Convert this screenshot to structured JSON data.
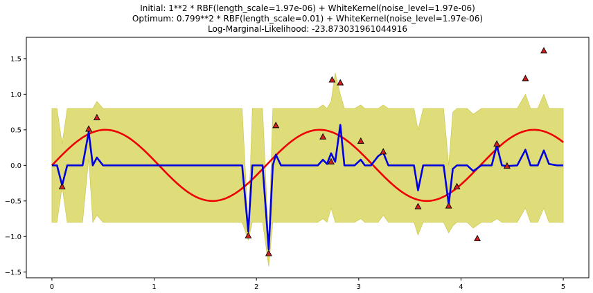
{
  "chart_data": {
    "type": "line",
    "title_lines": [
      "Initial: 1**2 * RBF(length_scale=1.97e-06) + WhiteKernel(noise_level=1.97e-06)",
      "Optimum: 0.799**2 * RBF(length_scale=0.01) + WhiteKernel(noise_level=1.97e-06)",
      "Log-Marginal-Likelihood: -23.873031961044916"
    ],
    "xlim": [
      -0.25,
      5.25
    ],
    "ylim": [
      -1.58,
      1.8
    ],
    "xticks": [
      0,
      1,
      2,
      3,
      4,
      5
    ],
    "xtick_labels": [
      "0",
      "1",
      "2",
      "3",
      "4",
      "5"
    ],
    "yticks": [
      -1.5,
      -1.0,
      -0.5,
      0.0,
      0.5,
      1.0,
      1.5
    ],
    "ytick_labels": [
      "−1.5",
      "−1.0",
      "−0.5",
      "0.0",
      "0.5",
      "1.0",
      "1.5"
    ],
    "grid": false,
    "colors": {
      "band": "#d4d04e",
      "band_edge": "#c8c43e",
      "mean": "#0000dd",
      "truth": "#ee0000",
      "marker_fill": "#d42020",
      "marker_edge": "#000000"
    },
    "true_function": {
      "expression": "0.5*sin(3x)",
      "x_range": [
        0,
        5
      ]
    },
    "observations": {
      "x": [
        0.1,
        0.36,
        0.44,
        1.92,
        2.12,
        2.19,
        2.65,
        2.73,
        2.74,
        2.82,
        3.02,
        3.24,
        3.58,
        3.88,
        3.96,
        4.16,
        4.35,
        4.45,
        4.63,
        4.81
      ],
      "y": [
        -0.3,
        0.51,
        0.67,
        -0.99,
        -1.24,
        0.56,
        0.4,
        0.05,
        1.2,
        1.16,
        0.34,
        0.19,
        -0.58,
        -0.57,
        -0.3,
        -1.03,
        0.3,
        -0.01,
        1.22,
        1.61
      ]
    },
    "mean": {
      "x": [
        0.0,
        0.05,
        0.1,
        0.15,
        0.3,
        0.36,
        0.4,
        0.44,
        0.5,
        1.86,
        1.92,
        1.96,
        2.06,
        2.12,
        2.16,
        2.19,
        2.24,
        2.6,
        2.65,
        2.69,
        2.73,
        2.77,
        2.82,
        2.86,
        2.96,
        3.02,
        3.06,
        3.12,
        3.19,
        3.24,
        3.29,
        3.54,
        3.58,
        3.63,
        3.83,
        3.88,
        3.92,
        3.96,
        4.02,
        4.06,
        4.12,
        4.2,
        4.3,
        4.35,
        4.4,
        4.45,
        4.55,
        4.63,
        4.68,
        4.75,
        4.81,
        4.86,
        4.94,
        5.0
      ],
      "y": [
        0.0,
        0.0,
        -0.28,
        0.0,
        0.0,
        0.47,
        0.0,
        0.11,
        0.0,
        0.0,
        -0.93,
        0.0,
        0.0,
        -1.18,
        0.0,
        0.15,
        0.0,
        0.0,
        0.08,
        0.02,
        0.17,
        0.05,
        0.57,
        0.0,
        0.0,
        0.08,
        0.0,
        0.0,
        0.13,
        0.18,
        0.0,
        0.0,
        -0.35,
        0.0,
        0.0,
        -0.55,
        -0.05,
        0.0,
        0.0,
        0.0,
        -0.08,
        0.0,
        0.0,
        0.28,
        0.0,
        -0.01,
        0.0,
        0.22,
        0.0,
        0.0,
        0.21,
        0.02,
        0.0,
        0.0
      ]
    },
    "band": {
      "x": [
        0.0,
        0.05,
        0.1,
        0.15,
        0.3,
        0.36,
        0.4,
        0.44,
        0.5,
        1.86,
        1.92,
        1.96,
        2.06,
        2.12,
        2.16,
        2.19,
        2.24,
        2.6,
        2.65,
        2.69,
        2.73,
        2.77,
        2.82,
        2.86,
        2.96,
        3.02,
        3.06,
        3.12,
        3.19,
        3.24,
        3.29,
        3.54,
        3.58,
        3.63,
        3.83,
        3.88,
        3.92,
        3.96,
        4.02,
        4.06,
        4.12,
        4.2,
        4.3,
        4.35,
        4.4,
        4.45,
        4.55,
        4.63,
        4.68,
        4.75,
        4.81,
        4.86,
        4.94,
        5.0
      ],
      "upper": [
        0.8,
        0.8,
        0.3,
        0.8,
        0.8,
        0.8,
        0.8,
        0.9,
        0.8,
        0.8,
        -0.85,
        0.8,
        0.8,
        -1.1,
        0.8,
        0.8,
        0.8,
        0.8,
        0.85,
        0.8,
        0.9,
        1.3,
        1.0,
        0.8,
        0.8,
        0.85,
        0.8,
        0.8,
        0.8,
        0.85,
        0.8,
        0.8,
        0.5,
        0.8,
        0.8,
        0.0,
        0.75,
        0.8,
        0.8,
        0.8,
        0.72,
        0.8,
        0.8,
        0.8,
        0.8,
        0.8,
        0.8,
        1.0,
        0.8,
        0.8,
        1.0,
        0.8,
        0.8,
        0.8
      ],
      "lower": [
        -0.8,
        -0.8,
        -0.3,
        -0.8,
        -0.8,
        0.1,
        -0.8,
        -0.7,
        -0.8,
        -0.8,
        -1.05,
        -0.8,
        -0.8,
        -1.42,
        -0.8,
        -0.8,
        -0.8,
        -0.8,
        -0.75,
        -0.8,
        -0.6,
        -0.8,
        -0.8,
        -0.8,
        -0.8,
        -0.75,
        -0.8,
        -0.8,
        -0.8,
        -0.7,
        -0.8,
        -0.8,
        -0.98,
        -0.8,
        -0.8,
        -0.95,
        -0.85,
        -0.8,
        -0.8,
        -0.8,
        -0.88,
        -0.8,
        -0.8,
        -0.75,
        -0.8,
        -0.8,
        -0.8,
        -0.6,
        -0.8,
        -0.8,
        -0.6,
        -0.8,
        -0.8,
        -0.8
      ]
    }
  }
}
